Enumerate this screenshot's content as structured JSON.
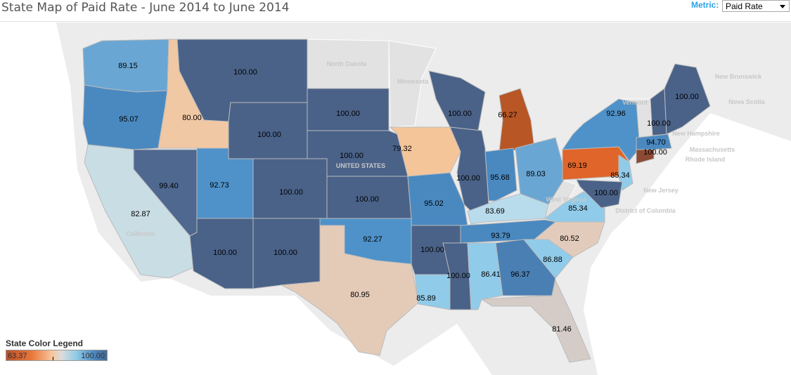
{
  "title": "State Map of Paid Rate - June 2014 to June 2014",
  "metric": {
    "label": "Metric:",
    "selected": "Paid Rate"
  },
  "legend": {
    "title": "State Color Legend",
    "min": "63.37",
    "max": "100.00"
  },
  "geo_labels": [
    "North Dakota",
    "Minnesota",
    "UNITED STATES",
    "California",
    "New Brunswick",
    "Nova Scotia",
    "Vermont",
    "New Hampshire",
    "Massachusetts",
    "Rhode Island",
    "New Jersey",
    "District of Columbia",
    "West Virginia"
  ],
  "states": [
    {
      "code": "WA",
      "value": "89.15",
      "color": "#6aa6d3"
    },
    {
      "code": "OR",
      "value": "95.07",
      "color": "#4a89c0"
    },
    {
      "code": "ID",
      "value": "80.00",
      "color": "#f1c8a4"
    },
    {
      "code": "MT",
      "value": "100.00",
      "color": "#4a6288"
    },
    {
      "code": "WY",
      "value": "100.00",
      "color": "#4a6288"
    },
    {
      "code": "SD",
      "value": "100.00",
      "color": "#4a6288"
    },
    {
      "code": "NE",
      "value": "100.00",
      "color": "#4a6288"
    },
    {
      "code": "CO",
      "value": "100.00",
      "color": "#4a6288"
    },
    {
      "code": "UT",
      "value": "92.73",
      "color": "#4e92c9"
    },
    {
      "code": "NV",
      "value": "99.40",
      "color": "#4e6890"
    },
    {
      "code": "CA",
      "value": "82.87",
      "color": "#c9dde4"
    },
    {
      "code": "AZ",
      "value": "100.00",
      "color": "#4a6288"
    },
    {
      "code": "NM",
      "value": "100.00",
      "color": "#4a6288"
    },
    {
      "code": "KS",
      "value": "100.00",
      "color": "#4a6288"
    },
    {
      "code": "OK",
      "value": "92.27",
      "color": "#4e92c9"
    },
    {
      "code": "TX",
      "value": "80.95",
      "color": "#e4cbb8"
    },
    {
      "code": "IA",
      "value": "79.32",
      "color": "#f5c59a"
    },
    {
      "code": "MO",
      "value": "95.02",
      "color": "#4a89c0"
    },
    {
      "code": "AR",
      "value": "100.00",
      "color": "#4a6288"
    },
    {
      "code": "LA",
      "value": "85.89",
      "color": "#90cbe9"
    },
    {
      "code": "WI",
      "value": "100.00",
      "color": "#4a6288"
    },
    {
      "code": "IL",
      "value": "100.00",
      "color": "#4a6288"
    },
    {
      "code": "MI",
      "value": "66.27",
      "color": "#b85626"
    },
    {
      "code": "IN",
      "value": "95.68",
      "color": "#4a89c0"
    },
    {
      "code": "OH",
      "value": "89.03",
      "color": "#6aa6d3"
    },
    {
      "code": "KY",
      "value": "83.69",
      "color": "#b9dcec"
    },
    {
      "code": "TN",
      "value": "93.79",
      "color": "#4a89c0"
    },
    {
      "code": "MS",
      "value": "100.00",
      "color": "#4a6288"
    },
    {
      "code": "AL",
      "value": "86.41",
      "color": "#90cbe9"
    },
    {
      "code": "GA",
      "value": "96.37",
      "color": "#4a7fb4"
    },
    {
      "code": "FL",
      "value": "81.46",
      "color": "#d5ccc8"
    },
    {
      "code": "SC",
      "value": "86.88",
      "color": "#90cbe9"
    },
    {
      "code": "NC",
      "value": "80.52",
      "color": "#e3cbbb"
    },
    {
      "code": "VA",
      "value": "85.34",
      "color": "#90cbe9"
    },
    {
      "code": "PA",
      "value": "69.19",
      "color": "#e0652a"
    },
    {
      "code": "NY",
      "value": "92.96",
      "color": "#4e92c9"
    },
    {
      "code": "NJ",
      "value": "85.34",
      "color": "#90cbe9"
    },
    {
      "code": "MD",
      "value": "100.00",
      "color": "#4a6288"
    },
    {
      "code": "CT",
      "value": "100.00",
      "color": "#8c4a33"
    },
    {
      "code": "MA",
      "value": "94.70",
      "color": "#4a89c0"
    },
    {
      "code": "NH",
      "value": "100.00",
      "color": "#4a6288"
    },
    {
      "code": "ME",
      "value": "100.00",
      "color": "#4a6288"
    }
  ]
}
